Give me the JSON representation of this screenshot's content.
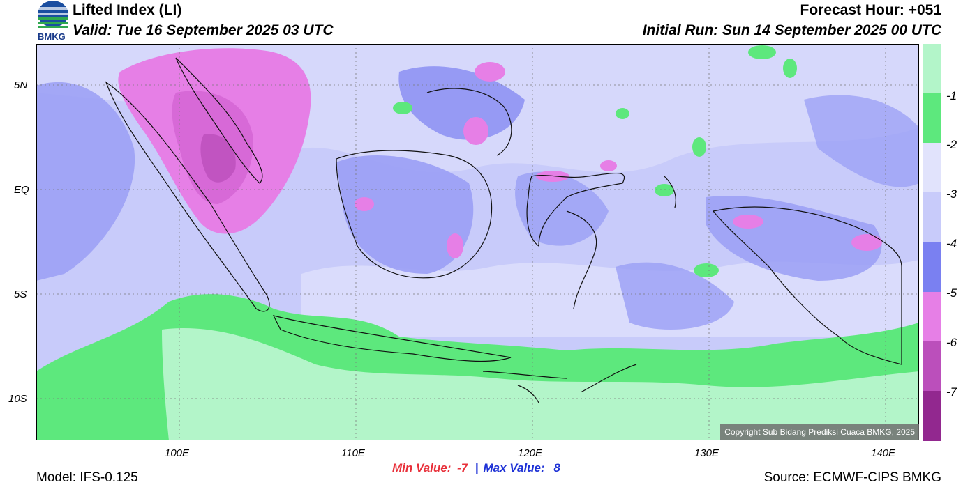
{
  "header": {
    "logo_text": "BMKG",
    "title": "Lifted Index (LI)",
    "valid": "Valid: Tue 16 September 2025 03 UTC",
    "forecast_hour": "Forecast Hour: +051",
    "initial_run": "Initial Run: Sun 14 September 2025 00 UTC"
  },
  "map": {
    "lat_labels": [
      "5N",
      "EQ",
      "5S",
      "10S"
    ],
    "lon_labels": [
      "100E",
      "110E",
      "120E",
      "130E",
      "140E"
    ],
    "copyright": "Copyright Sub Bidang Prediksi Cuaca BMKG, 2025"
  },
  "colorbar": {
    "labels": [
      "-1",
      "-2",
      "-3",
      "-4",
      "-5",
      "-6",
      "-7"
    ],
    "colors": [
      "#b3f5c9",
      "#5de87d",
      "#e1e3fc",
      "#c8cbfa",
      "#9a9ff5",
      "#7a80f1",
      "#e67fe6",
      "#d465d4",
      "#bb4fbb",
      "#92288f"
    ]
  },
  "stats": {
    "min_label": "Min Value:",
    "min_value": "-7",
    "separator": "|",
    "max_label": "Max Value:",
    "max_value": "8"
  },
  "footer": {
    "model": "Model: IFS-0.125",
    "source": "Source: ECMWF-CIPS BMKG"
  }
}
